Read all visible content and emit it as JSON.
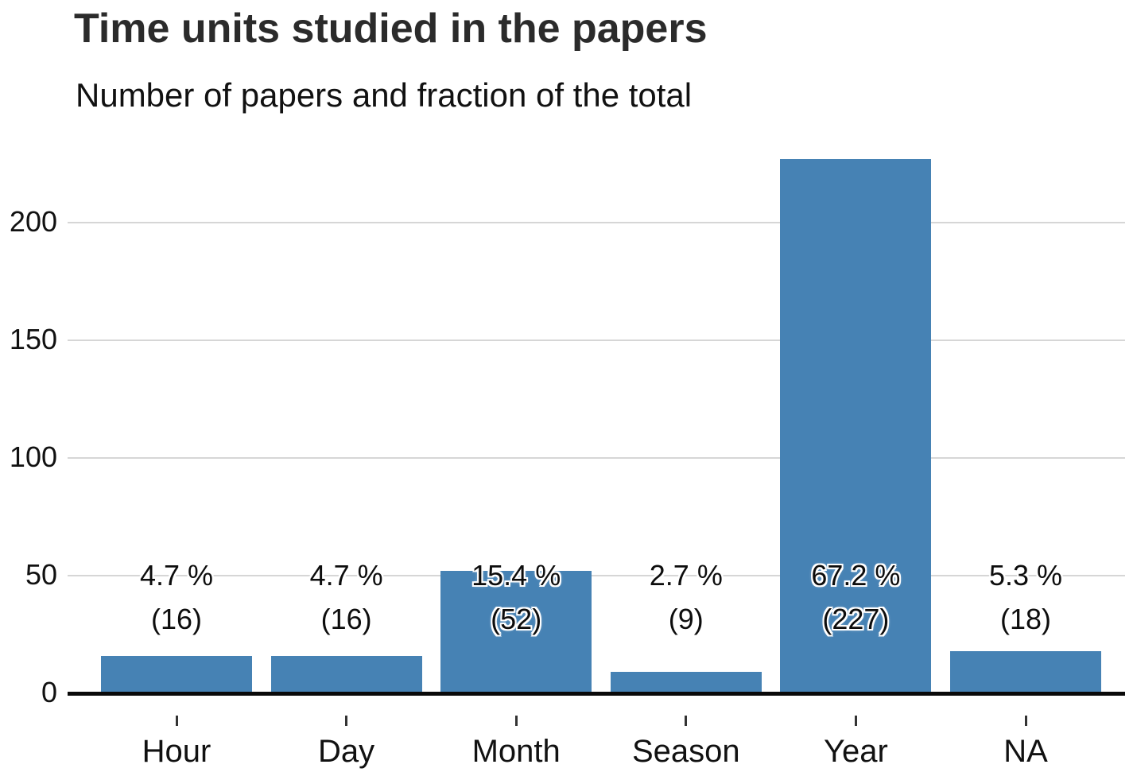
{
  "chart_data": {
    "type": "bar",
    "title": "Time units studied in the papers",
    "subtitle": "Number of papers and fraction of the total",
    "categories": [
      "Hour",
      "Day",
      "Month",
      "Season",
      "Year",
      "NA"
    ],
    "values": [
      16,
      16,
      52,
      9,
      227,
      18
    ],
    "percent_labels": [
      "4.7 %",
      "4.7 %",
      "15.4 %",
      "2.7 %",
      "67.2 %",
      "5.3 %"
    ],
    "count_labels": [
      "(16)",
      "(16)",
      "(52)",
      "(9)",
      "(227)",
      "(18)"
    ],
    "xlabel": "",
    "ylabel": "",
    "y_ticks": [
      0,
      50,
      100,
      150,
      200
    ],
    "ylim": [
      0,
      234
    ],
    "grid": true,
    "legend": "none",
    "bar_color": "#4682B4",
    "gridline_color": "#d6d6d6",
    "axis_color": "#0a0a0a"
  }
}
